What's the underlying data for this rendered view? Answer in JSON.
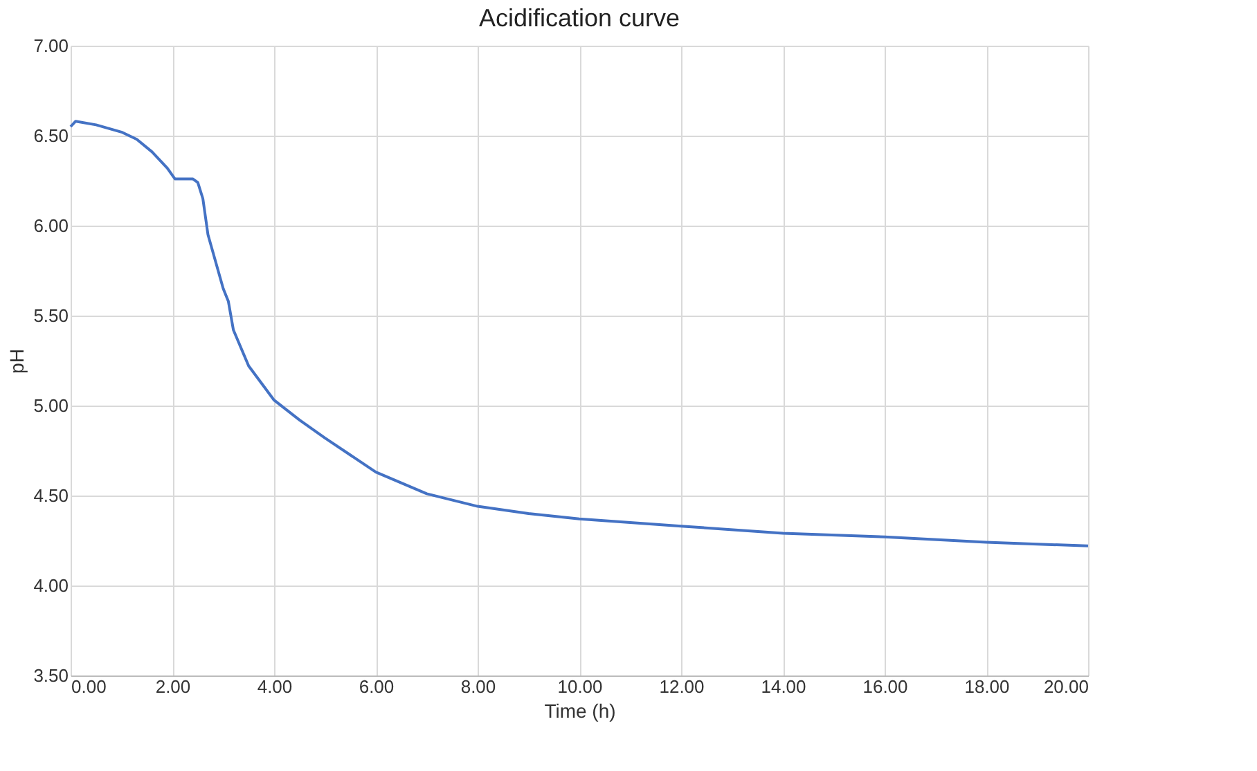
{
  "chart_data": {
    "type": "line",
    "title": "Acidification curve",
    "xlabel": "Time (h)",
    "ylabel": "pH",
    "x": [
      0,
      0.1,
      0.5,
      1,
      1.3,
      1.6,
      1.9,
      2.05,
      2.4,
      2.5,
      2.6,
      2.7,
      2.8,
      3.0,
      3.1,
      3.2,
      3.5,
      4.0,
      4.5,
      5,
      6,
      7,
      8,
      9,
      10,
      12,
      14,
      16,
      18,
      20
    ],
    "series": [
      {
        "color": "#4472c4",
        "values": [
          6.55,
          6.58,
          6.56,
          6.52,
          6.48,
          6.41,
          6.32,
          6.26,
          6.26,
          6.24,
          6.15,
          5.95,
          5.85,
          5.65,
          5.58,
          5.42,
          5.22,
          5.03,
          4.92,
          4.82,
          4.63,
          4.51,
          4.44,
          4.4,
          4.37,
          4.33,
          4.29,
          4.27,
          4.24,
          4.22
        ]
      }
    ],
    "xlim": [
      0,
      20
    ],
    "ylim": [
      3.5,
      7.0
    ],
    "xticks": [
      {
        "value": 0,
        "label": "0.00"
      },
      {
        "value": 2,
        "label": "2.00"
      },
      {
        "value": 4,
        "label": "4.00"
      },
      {
        "value": 6,
        "label": "6.00"
      },
      {
        "value": 8,
        "label": "8.00"
      },
      {
        "value": 10,
        "label": "10.00"
      },
      {
        "value": 12,
        "label": "12.00"
      },
      {
        "value": 14,
        "label": "14.00"
      },
      {
        "value": 16,
        "label": "16.00"
      },
      {
        "value": 18,
        "label": "18.00"
      },
      {
        "value": 20,
        "label": "20.00"
      }
    ],
    "yticks": [
      {
        "value": 3.5,
        "label": "3.50"
      },
      {
        "value": 4.0,
        "label": "4.00"
      },
      {
        "value": 4.5,
        "label": "4.50"
      },
      {
        "value": 5.0,
        "label": "5.00"
      },
      {
        "value": 5.5,
        "label": "5.50"
      },
      {
        "value": 6.0,
        "label": "6.00"
      },
      {
        "value": 6.5,
        "label": "6.50"
      },
      {
        "value": 7.0,
        "label": "7.00"
      }
    ],
    "grid": true,
    "legend": false,
    "marker": "none",
    "line_style": "solid"
  }
}
